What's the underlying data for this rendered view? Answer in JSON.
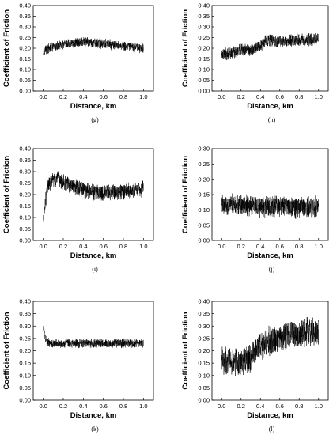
{
  "chart_data": [
    {
      "type": "line",
      "panel_label": "(g)",
      "xlabel": "Distance, km",
      "ylabel": "Coefficient of Friction",
      "xlim": [
        -0.1,
        1.1
      ],
      "ylim": [
        0.0,
        0.4
      ],
      "xticks": [
        "0.0",
        "0.2",
        "0.4",
        "0.6",
        "0.8",
        "1.0"
      ],
      "yticks": [
        "0.00",
        "0.05",
        "0.10",
        "0.15",
        "0.20",
        "0.25",
        "0.30",
        "0.35",
        "0.40"
      ],
      "series": [
        {
          "x": [
            0.0,
            0.1,
            0.2,
            0.3,
            0.4,
            0.5,
            0.6,
            0.7,
            0.8,
            0.9,
            1.0
          ],
          "values": [
            0.19,
            0.205,
            0.215,
            0.225,
            0.23,
            0.225,
            0.22,
            0.215,
            0.21,
            0.205,
            0.2
          ],
          "noise": 0.02
        }
      ]
    },
    {
      "type": "line",
      "panel_label": "(h)",
      "xlabel": "Distance, km",
      "ylabel": "Coefficient of Friction",
      "xlim": [
        -0.1,
        1.1
      ],
      "ylim": [
        0.0,
        0.4
      ],
      "xticks": [
        "0.0",
        "0.2",
        "0.4",
        "0.6",
        "0.8",
        "1.0"
      ],
      "yticks": [
        "0.00",
        "0.05",
        "0.10",
        "0.15",
        "0.20",
        "0.25",
        "0.30",
        "0.35",
        "0.40"
      ],
      "series": [
        {
          "x": [
            0.0,
            0.1,
            0.2,
            0.3,
            0.4,
            0.45,
            0.5,
            0.6,
            0.7,
            0.8,
            0.9,
            1.0
          ],
          "values": [
            0.17,
            0.18,
            0.19,
            0.195,
            0.21,
            0.235,
            0.24,
            0.23,
            0.235,
            0.24,
            0.24,
            0.245
          ],
          "noise": 0.025
        }
      ]
    },
    {
      "type": "line",
      "panel_label": "(i)",
      "xlabel": "Distance, km",
      "ylabel": "Coefficient of Friction",
      "xlim": [
        -0.1,
        1.1
      ],
      "ylim": [
        0.0,
        0.4
      ],
      "xticks": [
        "0.0",
        "0.2",
        "0.4",
        "0.6",
        "0.8",
        "1.0"
      ],
      "yticks": [
        "0.00",
        "0.05",
        "0.10",
        "0.15",
        "0.20",
        "0.25",
        "0.30",
        "0.35",
        "0.40"
      ],
      "series": [
        {
          "x": [
            0.0,
            0.02,
            0.05,
            0.1,
            0.15,
            0.2,
            0.3,
            0.4,
            0.5,
            0.6,
            0.7,
            0.8,
            0.9,
            1.0
          ],
          "values": [
            0.09,
            0.17,
            0.24,
            0.265,
            0.265,
            0.255,
            0.235,
            0.22,
            0.21,
            0.21,
            0.21,
            0.215,
            0.22,
            0.225
          ],
          "noise": 0.03
        }
      ]
    },
    {
      "type": "line",
      "panel_label": "(j)",
      "xlabel": "Distance, km",
      "ylabel": "Coefficient of Friction",
      "xlim": [
        -0.1,
        1.1
      ],
      "ylim": [
        0.0,
        0.3
      ],
      "xticks": [
        "0.0",
        "0.2",
        "0.4",
        "0.6",
        "0.8",
        "1.0"
      ],
      "yticks": [
        "0.00",
        "0.05",
        "0.10",
        "0.15",
        "0.20",
        "0.25",
        "0.30"
      ],
      "series": [
        {
          "x": [
            0.0,
            0.1,
            0.2,
            0.3,
            0.4,
            0.5,
            0.6,
            0.7,
            0.8,
            0.9,
            1.0
          ],
          "values": [
            0.12,
            0.115,
            0.115,
            0.115,
            0.11,
            0.11,
            0.11,
            0.11,
            0.105,
            0.11,
            0.11
          ],
          "noise": 0.03
        }
      ]
    },
    {
      "type": "line",
      "panel_label": "(k)",
      "xlabel": "Distance, km",
      "ylabel": "Coefficient of Friction",
      "xlim": [
        -0.1,
        1.1
      ],
      "ylim": [
        0.0,
        0.4
      ],
      "xticks": [
        "0.0",
        "0.2",
        "0.4",
        "0.6",
        "0.8",
        "1.0"
      ],
      "yticks": [
        "0.00",
        "0.05",
        "0.10",
        "0.15",
        "0.20",
        "0.25",
        "0.30",
        "0.35",
        "0.40"
      ],
      "series": [
        {
          "x": [
            0.0,
            0.02,
            0.05,
            0.1,
            0.2,
            0.3,
            0.4,
            0.5,
            0.6,
            0.7,
            0.8,
            0.9,
            1.0
          ],
          "values": [
            0.3,
            0.25,
            0.235,
            0.23,
            0.23,
            0.23,
            0.23,
            0.23,
            0.23,
            0.23,
            0.23,
            0.23,
            0.23
          ],
          "noise": 0.015
        }
      ]
    },
    {
      "type": "line",
      "panel_label": "(l)",
      "xlabel": "Distance, km",
      "ylabel": "Coefficient of Friction",
      "xlim": [
        -0.1,
        1.1
      ],
      "ylim": [
        0.0,
        0.4
      ],
      "xticks": [
        "0.0",
        "0.2",
        "0.4",
        "0.6",
        "0.8",
        "1.0"
      ],
      "yticks": [
        "0.00",
        "0.05",
        "0.10",
        "0.15",
        "0.20",
        "0.25",
        "0.30",
        "0.35",
        "0.40"
      ],
      "series": [
        {
          "x": [
            0.0,
            0.1,
            0.2,
            0.3,
            0.35,
            0.4,
            0.5,
            0.6,
            0.7,
            0.8,
            0.9,
            1.0
          ],
          "values": [
            0.16,
            0.155,
            0.15,
            0.17,
            0.2,
            0.22,
            0.24,
            0.25,
            0.26,
            0.27,
            0.275,
            0.28
          ],
          "noise": 0.05
        }
      ]
    }
  ]
}
